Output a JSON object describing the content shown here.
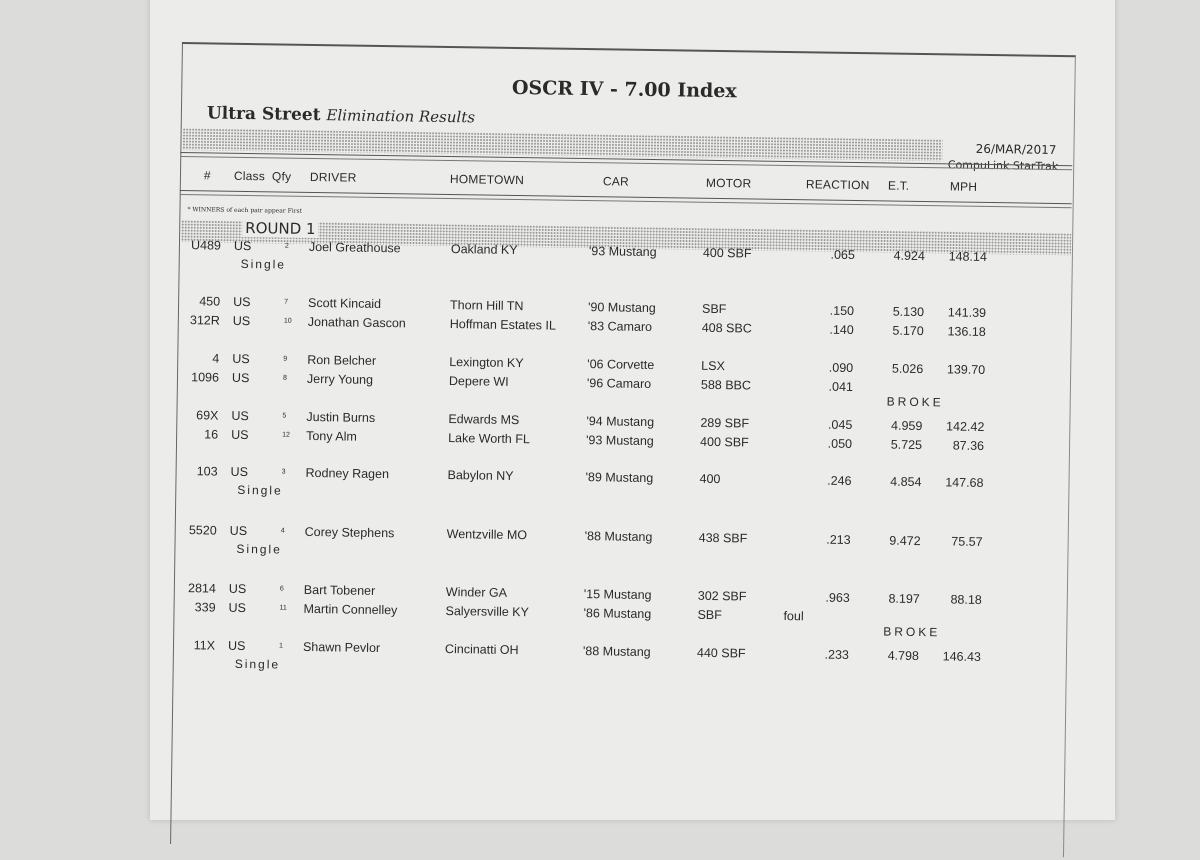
{
  "header": {
    "title": "OSCR IV - 7.00 Index",
    "class_name": "Ultra Street",
    "report_type": "Elimination Results",
    "date": "26/MAR/2017",
    "software": "CompuLink StarTrak"
  },
  "columns": [
    "#",
    "Class",
    "Qfy",
    "DRIVER",
    "HOMETOWN",
    "CAR",
    "MOTOR",
    "REACTION",
    "E.T.",
    "MPH"
  ],
  "note": "* WINNERS of each pair appear First",
  "round_label": "ROUND 1",
  "single_label": "Single",
  "rows": [
    {
      "num": "U489",
      "cls": "US",
      "qfy": "2",
      "driver": "Joel Greathouse",
      "hometown": "Oakland KY",
      "car": "'93 Mustang",
      "motor": "400 SBF",
      "reaction": ".065",
      "et": "4.924",
      "mph": "148.14",
      "single": true
    },
    {
      "num": "450",
      "cls": "US",
      "qfy": "7",
      "driver": "Scott Kincaid",
      "hometown": "Thorn Hill TN",
      "car": "'90 Mustang",
      "motor": "SBF",
      "reaction": ".150",
      "et": "5.130",
      "mph": "141.39"
    },
    {
      "num": "312R",
      "cls": "US",
      "qfy": "10",
      "driver": "Jonathan Gascon",
      "hometown": "Hoffman Estates IL",
      "car": "'83 Camaro",
      "motor": "408 SBC",
      "reaction": ".140",
      "et": "5.170",
      "mph": "136.18"
    },
    {
      "num": "4",
      "cls": "US",
      "qfy": "9",
      "driver": "Ron Belcher",
      "hometown": "Lexington KY",
      "car": "'06 Corvette",
      "motor": "LSX",
      "reaction": ".090",
      "et": "5.026",
      "mph": "139.70"
    },
    {
      "num": "1096",
      "cls": "US",
      "qfy": "8",
      "driver": "Jerry Young",
      "hometown": "Depere WI",
      "car": "'96 Camaro",
      "motor": "588 BBC",
      "reaction": ".041",
      "result": "BROKE"
    },
    {
      "num": "69X",
      "cls": "US",
      "qfy": "5",
      "driver": "Justin Burns",
      "hometown": "Edwards MS",
      "car": "'94 Mustang",
      "motor": "289 SBF",
      "reaction": ".045",
      "et": "4.959",
      "mph": "142.42"
    },
    {
      "num": "16",
      "cls": "US",
      "qfy": "12",
      "driver": "Tony Alm",
      "hometown": "Lake Worth FL",
      "car": "'93 Mustang",
      "motor": "400 SBF",
      "reaction": ".050",
      "et": "5.725",
      "mph": "87.36"
    },
    {
      "num": "103",
      "cls": "US",
      "qfy": "3",
      "driver": "Rodney Ragen",
      "hometown": "Babylon NY",
      "car": "'89 Mustang",
      "motor": "400",
      "reaction": ".246",
      "et": "4.854",
      "mph": "147.68",
      "single": true
    },
    {
      "num": "5520",
      "cls": "US",
      "qfy": "4",
      "driver": "Corey Stephens",
      "hometown": "Wentzville MO",
      "car": "'88 Mustang",
      "motor": "438 SBF",
      "reaction": ".213",
      "et": "9.472",
      "mph": "75.57",
      "single": true
    },
    {
      "num": "2814",
      "cls": "US",
      "qfy": "6",
      "driver": "Bart Tobener",
      "hometown": "Winder GA",
      "car": "'15 Mustang",
      "motor": "302 SBF",
      "reaction": ".963",
      "et": "8.197",
      "mph": "88.18"
    },
    {
      "num": "339",
      "cls": "US",
      "qfy": "11",
      "driver": "Martin Connelley",
      "hometown": "Salyersville KY",
      "car": "'86 Mustang",
      "motor": "SBF",
      "foul": "foul",
      "result": "BROKE"
    },
    {
      "num": "11X",
      "cls": "US",
      "qfy": "1",
      "driver": "Shawn Pevlor",
      "hometown": "Cincinatti OH",
      "car": "'88 Mustang",
      "motor": "440 SBF",
      "reaction": ".233",
      "et": "4.798",
      "mph": "146.43",
      "single": true
    }
  ]
}
